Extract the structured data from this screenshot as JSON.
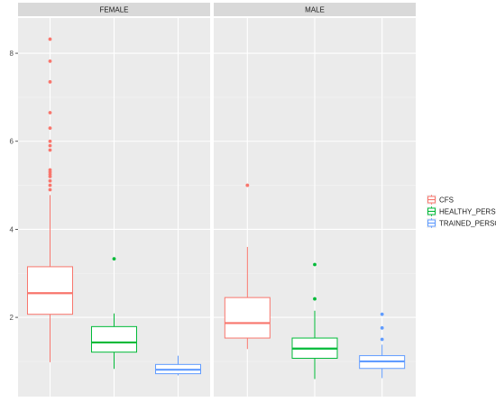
{
  "chart_data": {
    "type": "boxplot",
    "facets": [
      "FEMALE",
      "MALE"
    ],
    "categories": [
      "CFS",
      "HEALTHY_PERSON",
      "TRAINED_PERSON"
    ],
    "colors": {
      "CFS": "#F8766D",
      "HEALTHY_PERSON": "#00BA38",
      "TRAINED_PERSON": "#619CFF"
    },
    "y_ticks": [
      2,
      4,
      6,
      8
    ],
    "ylim": [
      0.2,
      8.8
    ],
    "grid": true,
    "legend_position": "right",
    "boxes": {
      "FEMALE": {
        "CFS": {
          "q1": 2.07,
          "median": 2.55,
          "q3": 3.15,
          "whisker_low": 0.98,
          "whisker_high": 4.78,
          "outliers": [
            4.9,
            5.0,
            5.1,
            5.2,
            5.25,
            5.3,
            5.35,
            5.8,
            5.9,
            6.0,
            6.3,
            6.65,
            7.35,
            7.82,
            8.32
          ]
        },
        "HEALTHY_PERSON": {
          "q1": 1.21,
          "median": 1.43,
          "q3": 1.79,
          "whisker_low": 0.83,
          "whisker_high": 2.09,
          "outliers": [
            3.33
          ]
        },
        "TRAINED_PERSON": {
          "q1": 0.72,
          "median": 0.81,
          "q3": 0.93,
          "whisker_low": 0.68,
          "whisker_high": 1.13,
          "outliers": []
        }
      },
      "MALE": {
        "CFS": {
          "q1": 1.53,
          "median": 1.87,
          "q3": 2.45,
          "whisker_low": 1.28,
          "whisker_high": 3.6,
          "outliers": [
            5.0
          ]
        },
        "HEALTHY_PERSON": {
          "q1": 1.07,
          "median": 1.29,
          "q3": 1.53,
          "whisker_low": 0.6,
          "whisker_high": 2.15,
          "outliers": [
            2.42,
            3.2
          ]
        },
        "TRAINED_PERSON": {
          "q1": 0.84,
          "median": 1.0,
          "q3": 1.13,
          "whisker_low": 0.62,
          "whisker_high": 1.38,
          "outliers": [
            1.5,
            1.76,
            2.07
          ]
        }
      }
    }
  }
}
